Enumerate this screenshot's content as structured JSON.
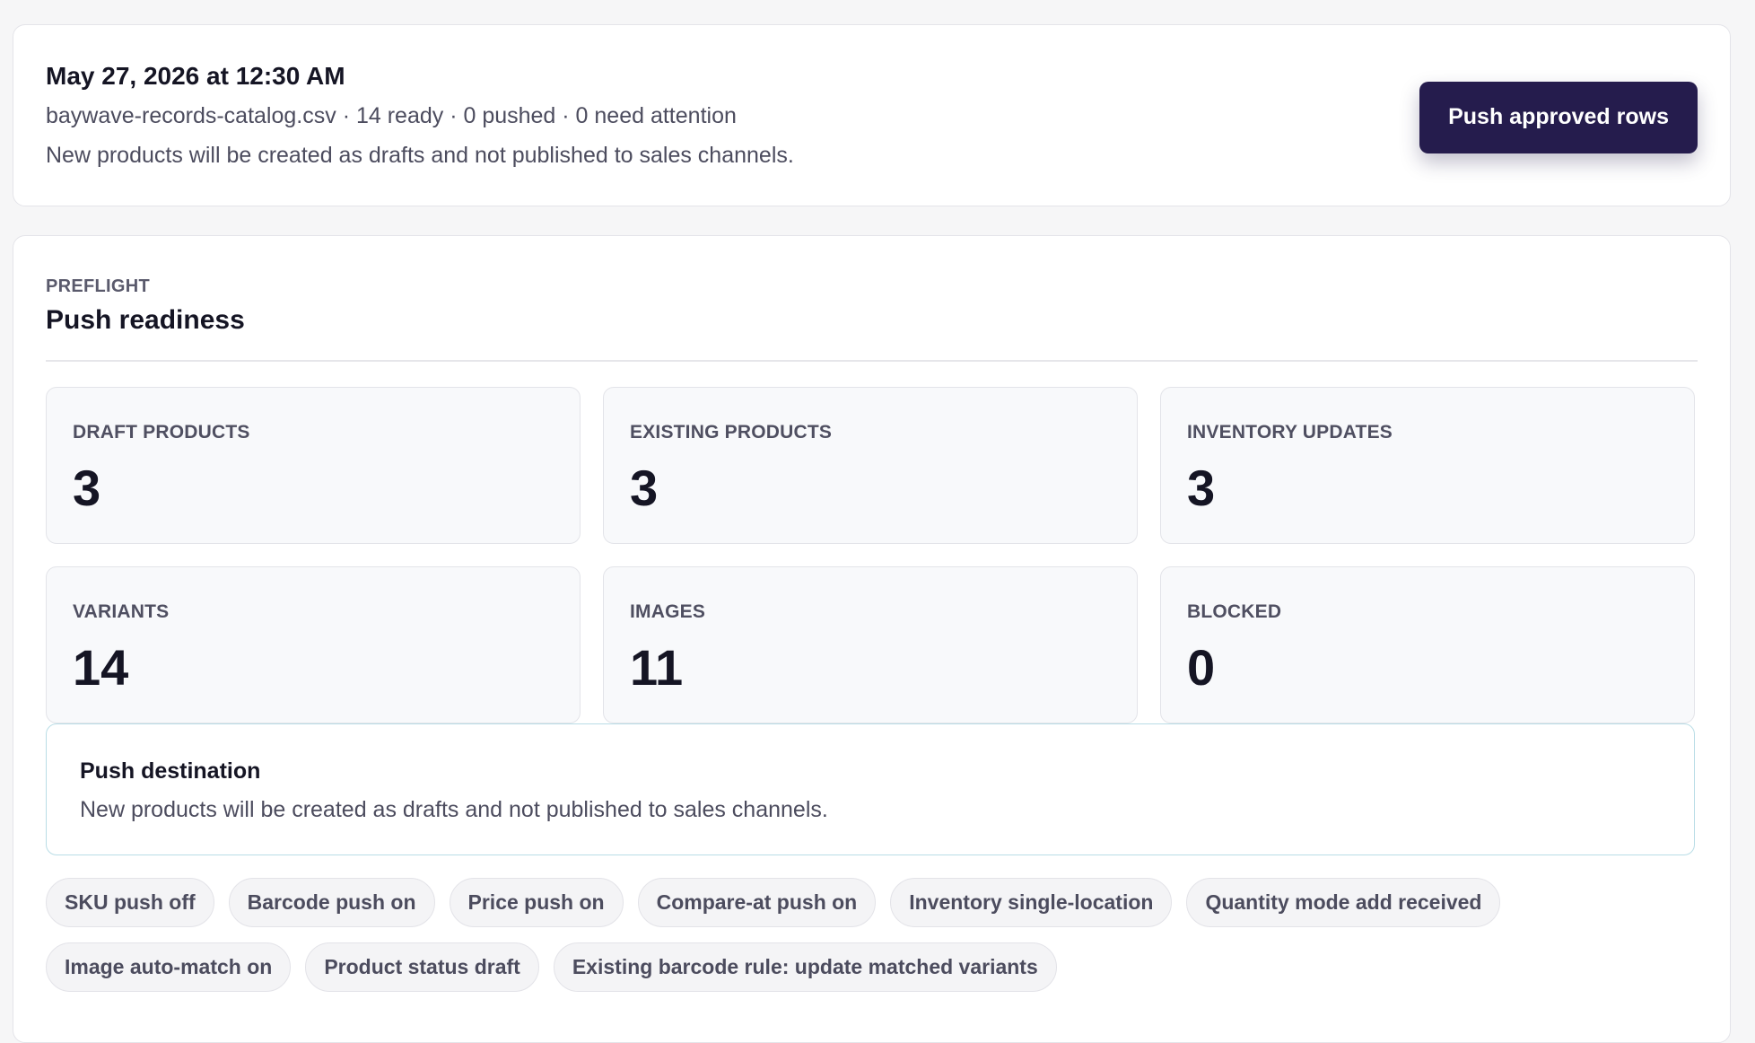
{
  "batch": {
    "title": "May 27, 2026 at 12:30 AM",
    "meta": "baywave-records-catalog.csv · 14 ready · 0 pushed · 0 need attention",
    "note": "New products will be created as drafts and not published to sales channels.",
    "push_button": "Push approved rows"
  },
  "preflight": {
    "eyebrow": "PREFLIGHT",
    "title": "Push readiness",
    "stats": [
      {
        "label": "DRAFT PRODUCTS",
        "value": "3"
      },
      {
        "label": "EXISTING PRODUCTS",
        "value": "3"
      },
      {
        "label": "INVENTORY UPDATES",
        "value": "3"
      },
      {
        "label": "VARIANTS",
        "value": "14"
      },
      {
        "label": "IMAGES",
        "value": "11"
      },
      {
        "label": "BLOCKED",
        "value": "0"
      }
    ],
    "destination": {
      "title": "Push destination",
      "text": "New products will be created as drafts and not published to sales channels."
    },
    "chips": [
      "SKU push off",
      "Barcode push on",
      "Price push on",
      "Compare-at push on",
      "Inventory single-location",
      "Quantity mode add received",
      "Image auto-match on",
      "Product status draft",
      "Existing barcode rule: update matched variants"
    ]
  },
  "colors": {
    "primary_button": "#251c4d",
    "destination_border": "#b9dde6",
    "background": "#f6f6f7"
  }
}
